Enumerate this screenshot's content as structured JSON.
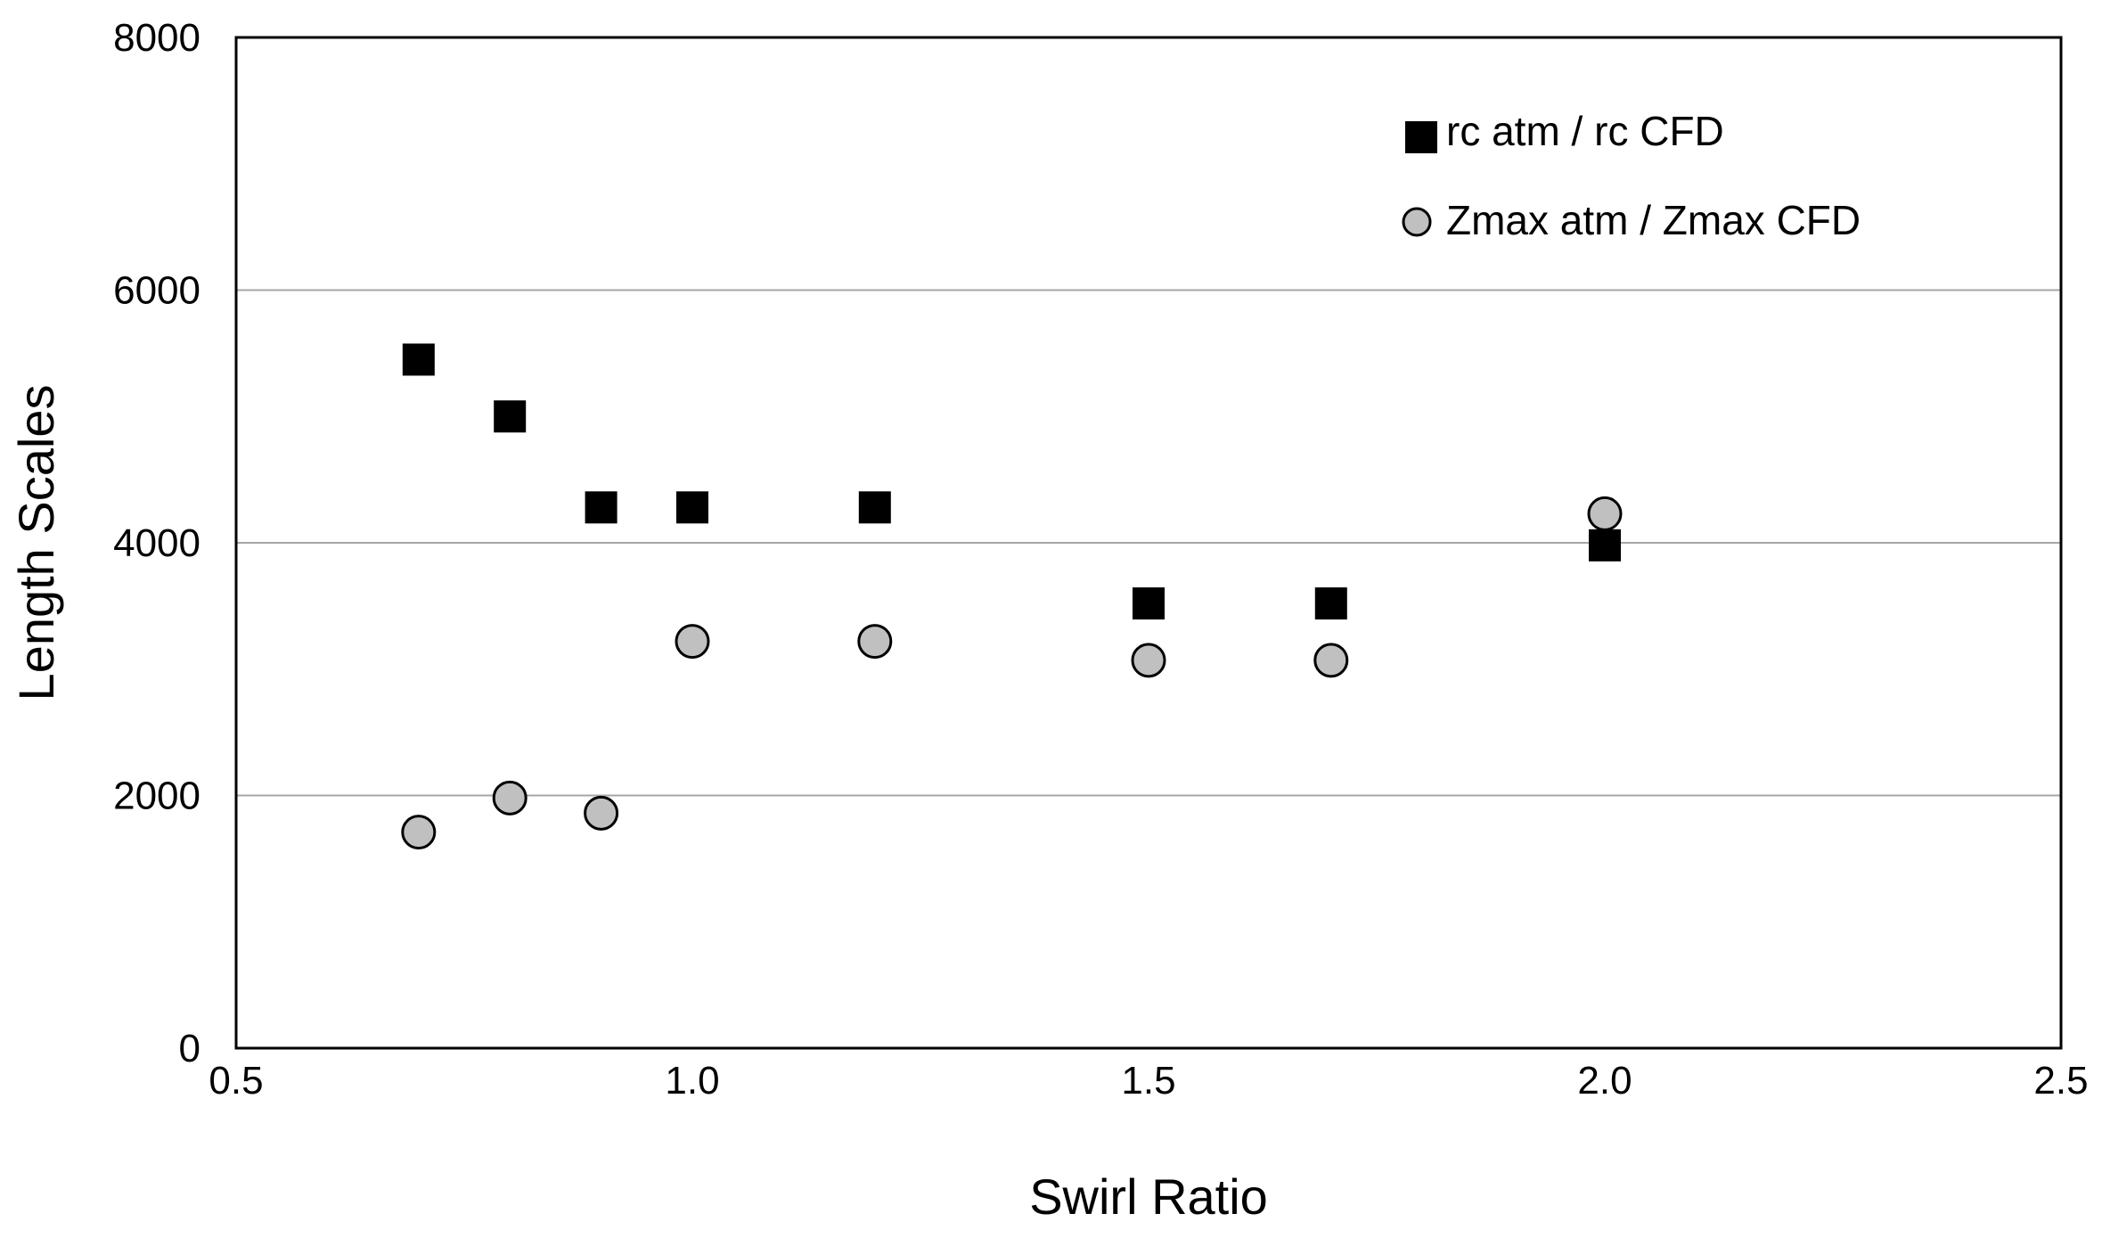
{
  "chart_data": {
    "type": "scatter",
    "title": "",
    "xlabel": "Swirl Ratio",
    "ylabel": "Length Scales",
    "xlim": [
      0.5,
      2.5
    ],
    "ylim": [
      0,
      8000
    ],
    "xticks": [
      0.5,
      1.0,
      1.5,
      2.0,
      2.5
    ],
    "xtick_labels": [
      "0.5",
      "1.0",
      "1.5",
      "2.0",
      "2.5"
    ],
    "yticks": [
      0,
      2000,
      4000,
      6000,
      8000
    ],
    "ytick_labels": [
      "0",
      "2000",
      "4000",
      "6000",
      "8000"
    ],
    "grid": "horizontal major gridlines",
    "legend_position": "top-right",
    "series": [
      {
        "name": "rc atm / rc CFD",
        "marker": "square",
        "color": "#000000",
        "points": [
          {
            "x": 0.7,
            "y": 5450
          },
          {
            "x": 0.8,
            "y": 5000
          },
          {
            "x": 0.9,
            "y": 4280
          },
          {
            "x": 1.0,
            "y": 4280
          },
          {
            "x": 1.2,
            "y": 4280
          },
          {
            "x": 1.5,
            "y": 3520
          },
          {
            "x": 1.7,
            "y": 3520
          },
          {
            "x": 2.0,
            "y": 3980
          }
        ]
      },
      {
        "name": "Zmax atm / Zmax CFD",
        "marker": "circle",
        "color": "#c0c0c0",
        "points": [
          {
            "x": 0.7,
            "y": 1710
          },
          {
            "x": 0.8,
            "y": 1980
          },
          {
            "x": 0.9,
            "y": 1860
          },
          {
            "x": 1.0,
            "y": 3220
          },
          {
            "x": 1.2,
            "y": 3220
          },
          {
            "x": 1.5,
            "y": 3070
          },
          {
            "x": 1.7,
            "y": 3070
          },
          {
            "x": 2.0,
            "y": 4230
          }
        ]
      }
    ]
  }
}
